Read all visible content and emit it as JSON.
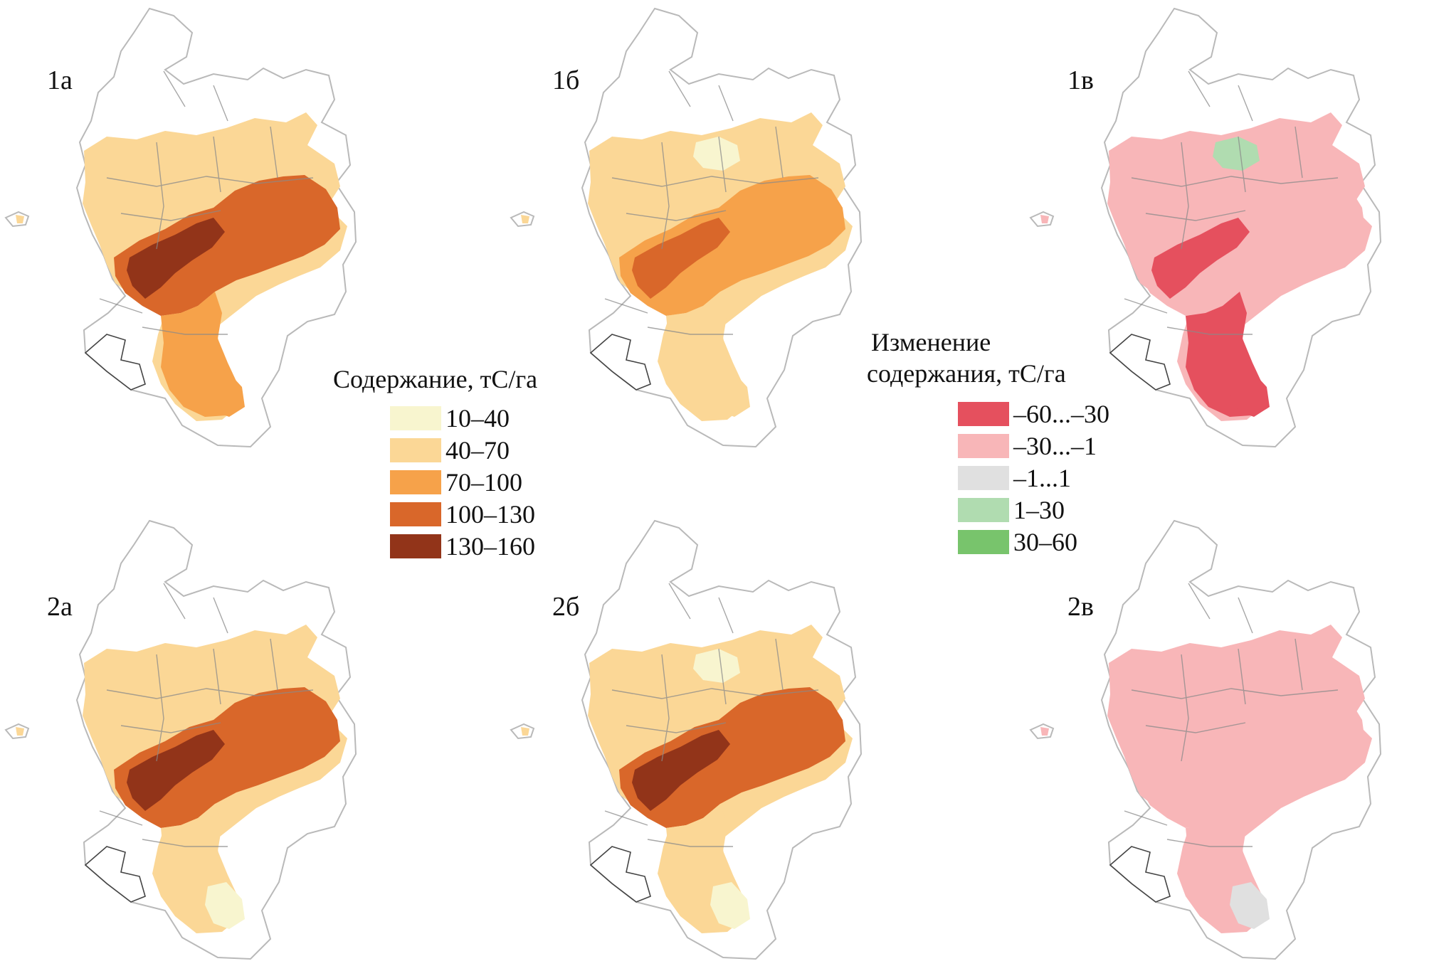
{
  "colors": {
    "content": {
      "c1": "#f8f5cf",
      "c2": "#fbd796",
      "c3": "#f6a24a",
      "c4": "#d9672a",
      "c5": "#923419"
    },
    "change": {
      "d1": "#e5505e",
      "d2": "#f8b6b8",
      "d3": "#e0e0e0",
      "d4": "#b0dcb0",
      "d5": "#78c46c"
    },
    "outline": "#b9b9b9",
    "region": "#8a8a8a"
  },
  "panels": [
    {
      "label": "1а",
      "scheme": "content",
      "dominant": "c2",
      "belt": "c4",
      "core": "c5",
      "south": "c3",
      "south_tail": "c3",
      "north_patch": "c2"
    },
    {
      "label": "1б",
      "scheme": "content",
      "dominant": "c2",
      "belt": "c3",
      "core": "c4",
      "south": "c2",
      "south_tail": "c2",
      "north_patch": "c1"
    },
    {
      "label": "1в",
      "scheme": "change",
      "dominant": "d2",
      "belt": "d2",
      "core": "d1",
      "south": "d1",
      "south_tail": "d1",
      "north_patch": "d4"
    },
    {
      "label": "2а",
      "scheme": "content",
      "dominant": "c2",
      "belt": "c4",
      "core": "c5",
      "south": "c2",
      "south_tail": "c1",
      "north_patch": "c2"
    },
    {
      "label": "2б",
      "scheme": "content",
      "dominant": "c2",
      "belt": "c4",
      "core": "c5",
      "south": "c2",
      "south_tail": "c1",
      "north_patch": "c1"
    },
    {
      "label": "2в",
      "scheme": "change",
      "dominant": "d2",
      "belt": "d2",
      "core": "d2",
      "south": "d2",
      "south_tail": "d3",
      "north_patch": "d2"
    }
  ],
  "legend_content": {
    "title": "Содержание, тС/га",
    "items": [
      {
        "label": "10–40",
        "color": "#f8f5cf"
      },
      {
        "label": "40–70",
        "color": "#fbd796"
      },
      {
        "label": "70–100",
        "color": "#f6a24a"
      },
      {
        "label": "100–130",
        "color": "#d9672a"
      },
      {
        "label": "130–160",
        "color": "#923419"
      }
    ]
  },
  "legend_change": {
    "title_line1": "Изменение",
    "title_line2": "содержания, тС/га",
    "items": [
      {
        "label": "–60...–30",
        "color": "#e5505e"
      },
      {
        "label": "–30...–1",
        "color": "#f8b6b8"
      },
      {
        "label": "–1...1",
        "color": "#e0e0e0"
      },
      {
        "label": "1–30",
        "color": "#b0dcb0"
      },
      {
        "label": "30–60",
        "color": "#78c46c"
      }
    ]
  }
}
